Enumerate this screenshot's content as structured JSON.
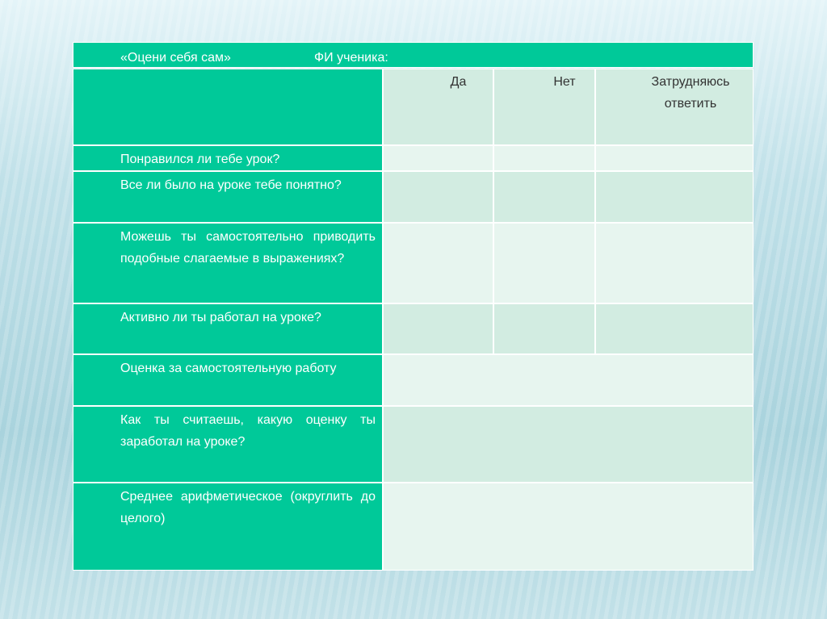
{
  "header": {
    "title": "«Оцени себя сам»",
    "student_label": "ФИ ученика:"
  },
  "table": {
    "columns": [
      "Да",
      "Нет",
      "Затрудняюсь ответить"
    ],
    "rows": [
      "Понравился ли тебе урок?",
      "Все ли было на уроке тебе понятно?",
      "Можешь ты самостоятельно приводить подобные слагаемые в выражениях?",
      "Активно ли ты работал на уроке?",
      "Оценка за самостоятельную работу",
      "Как ты считаешь, какую оценку ты заработал на уроке?",
      "Среднее арифметическое (округлить до целого)"
    ]
  }
}
